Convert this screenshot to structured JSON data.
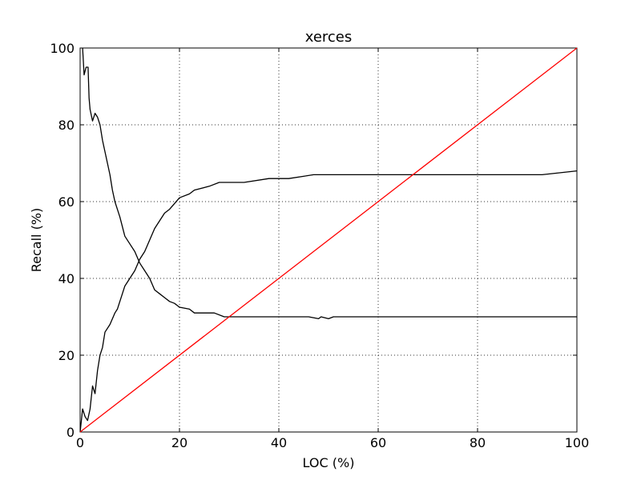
{
  "chart_data": {
    "type": "line",
    "title": "xerces",
    "xlabel": "LOC (%)",
    "ylabel": "Recall (%)",
    "xlim": [
      0,
      100
    ],
    "ylim": [
      0,
      100
    ],
    "xticks": [
      "0",
      "20",
      "40",
      "60",
      "80",
      "100"
    ],
    "yticks": [
      "0",
      "20",
      "40",
      "60",
      "80",
      "100"
    ],
    "grid": true,
    "colors": {
      "rising": "#000000",
      "falling": "#000000",
      "diagonal": "#ff0000"
    },
    "series": [
      {
        "values": [
          [
            0,
            0
          ],
          [
            0.5,
            6
          ],
          [
            1,
            4
          ],
          [
            1.5,
            3
          ],
          [
            2,
            6
          ],
          [
            2.5,
            12
          ],
          [
            3,
            10
          ],
          [
            3.5,
            16
          ],
          [
            4,
            20
          ],
          [
            4.5,
            22
          ],
          [
            5,
            26
          ],
          [
            6,
            28
          ],
          [
            7,
            31
          ],
          [
            7.5,
            32
          ],
          [
            8,
            34
          ],
          [
            9,
            38
          ],
          [
            10,
            40
          ],
          [
            11,
            42
          ],
          [
            12,
            45
          ],
          [
            13,
            47
          ],
          [
            14,
            50
          ],
          [
            15,
            53
          ],
          [
            16,
            55
          ],
          [
            17,
            57
          ],
          [
            18,
            58
          ],
          [
            19,
            59.5
          ],
          [
            20,
            61
          ],
          [
            22,
            62
          ],
          [
            23,
            63
          ],
          [
            26,
            64
          ],
          [
            28,
            65
          ],
          [
            33,
            65
          ],
          [
            38,
            66
          ],
          [
            42,
            66
          ],
          [
            47,
            67
          ],
          [
            55,
            67
          ],
          [
            70,
            67
          ],
          [
            93,
            67
          ],
          [
            100,
            68
          ]
        ]
      },
      {
        "values": [
          [
            0.5,
            100
          ],
          [
            0.8,
            93
          ],
          [
            1.2,
            95
          ],
          [
            1.6,
            95
          ],
          [
            1.8,
            87
          ],
          [
            2,
            84
          ],
          [
            2.5,
            81
          ],
          [
            3,
            83
          ],
          [
            3.5,
            82
          ],
          [
            4,
            80
          ],
          [
            4.5,
            76
          ],
          [
            5,
            73
          ],
          [
            5.5,
            70
          ],
          [
            6,
            67
          ],
          [
            6.5,
            63
          ],
          [
            7,
            60
          ],
          [
            8,
            56
          ],
          [
            9,
            51
          ],
          [
            10,
            49
          ],
          [
            11,
            47
          ],
          [
            12,
            44
          ],
          [
            13,
            42
          ],
          [
            14,
            40
          ],
          [
            15,
            37
          ],
          [
            16,
            36
          ],
          [
            17,
            35
          ],
          [
            18,
            34
          ],
          [
            19,
            33.5
          ],
          [
            20,
            32.5
          ],
          [
            22,
            32
          ],
          [
            23,
            31
          ],
          [
            27,
            31
          ],
          [
            29,
            30
          ],
          [
            35,
            30
          ],
          [
            40,
            30
          ],
          [
            46,
            30
          ],
          [
            48,
            29.5
          ],
          [
            48.5,
            30
          ],
          [
            50,
            29.5
          ],
          [
            51,
            30
          ],
          [
            60,
            30
          ],
          [
            80,
            30
          ],
          [
            100,
            30
          ]
        ]
      },
      {
        "values": [
          [
            0,
            0
          ],
          [
            100,
            100
          ]
        ]
      }
    ]
  }
}
